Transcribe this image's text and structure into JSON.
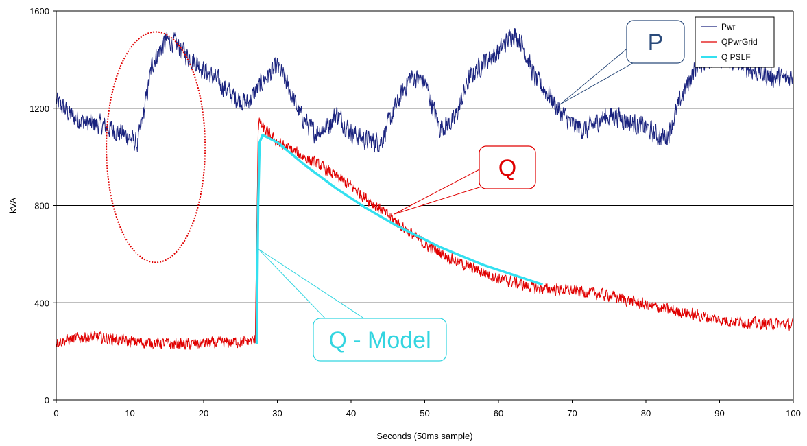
{
  "chart_data": {
    "type": "line",
    "xlabel": "Seconds (50ms sample)",
    "ylabel": "kVA",
    "xlim": [
      0,
      100
    ],
    "ylim": [
      0,
      1600
    ],
    "x_ticks": [
      "0",
      "10",
      "20",
      "30",
      "40",
      "50",
      "60",
      "70",
      "80",
      "90",
      "100"
    ],
    "y_ticks": [
      "0",
      "400",
      "800",
      "1200",
      "1600"
    ],
    "grid": "horizontal",
    "legend_position": "top-right",
    "series": [
      {
        "name": "Pwr",
        "color": "#1a237e",
        "noise": 70,
        "x": [
          0,
          2,
          4,
          6,
          8,
          10,
          11,
          12,
          13,
          14,
          15,
          16,
          17,
          18,
          19,
          20,
          22,
          24,
          26,
          28,
          30,
          31,
          33,
          35,
          37,
          38,
          40,
          42,
          44,
          46,
          48,
          50,
          52,
          54,
          56,
          58,
          60,
          62,
          63,
          65,
          67,
          68,
          70,
          72,
          74,
          76,
          78,
          80,
          82,
          83,
          85,
          87,
          89,
          91,
          93,
          95,
          97,
          99,
          100
        ],
        "y": [
          1230,
          1170,
          1140,
          1130,
          1110,
          1080,
          1050,
          1200,
          1380,
          1440,
          1480,
          1470,
          1440,
          1410,
          1390,
          1360,
          1310,
          1250,
          1220,
          1310,
          1370,
          1320,
          1180,
          1100,
          1130,
          1180,
          1100,
          1070,
          1060,
          1200,
          1330,
          1310,
          1120,
          1150,
          1320,
          1390,
          1430,
          1510,
          1480,
          1320,
          1250,
          1200,
          1130,
          1110,
          1160,
          1170,
          1140,
          1120,
          1080,
          1090,
          1260,
          1380,
          1410,
          1400,
          1380,
          1350,
          1330,
          1320,
          1340
        ]
      },
      {
        "name": "QPwrGrid",
        "color": "#e00000",
        "noise": 40,
        "x": [
          0,
          3,
          5,
          8,
          10,
          13,
          16,
          19,
          22,
          25,
          27,
          27.2,
          27.4,
          27.6,
          28,
          30,
          33,
          36,
          40,
          45,
          50,
          55,
          60,
          65,
          70,
          75,
          80,
          85,
          90,
          95,
          100
        ],
        "y": [
          240,
          255,
          260,
          250,
          240,
          235,
          230,
          230,
          235,
          240,
          245,
          700,
          1100,
          1150,
          1120,
          1060,
          1010,
          960,
          880,
          760,
          640,
          560,
          500,
          460,
          450,
          430,
          390,
          360,
          330,
          315,
          310
        ]
      },
      {
        "name": "Q PSLF",
        "color": "#33e0f0",
        "x": [
          27.2,
          27.4,
          27.6,
          28,
          30,
          32,
          34,
          36,
          38,
          40,
          42,
          44,
          46,
          48,
          50,
          52,
          54,
          56,
          58,
          60,
          62,
          64,
          66
        ],
        "y": [
          230,
          800,
          1060,
          1090,
          1060,
          1010,
          960,
          915,
          870,
          830,
          790,
          755,
          720,
          690,
          660,
          630,
          605,
          580,
          555,
          535,
          515,
          495,
          475
        ]
      }
    ],
    "annotations": [
      {
        "id": "p",
        "text": "P",
        "color": "#2a4a7a"
      },
      {
        "id": "q",
        "text": "Q",
        "color": "#e00000"
      },
      {
        "id": "model",
        "text": "Q - Model",
        "color": "#33d5e0"
      }
    ],
    "highlight_ellipse": {
      "color": "#e00000",
      "style": "dotted"
    }
  }
}
